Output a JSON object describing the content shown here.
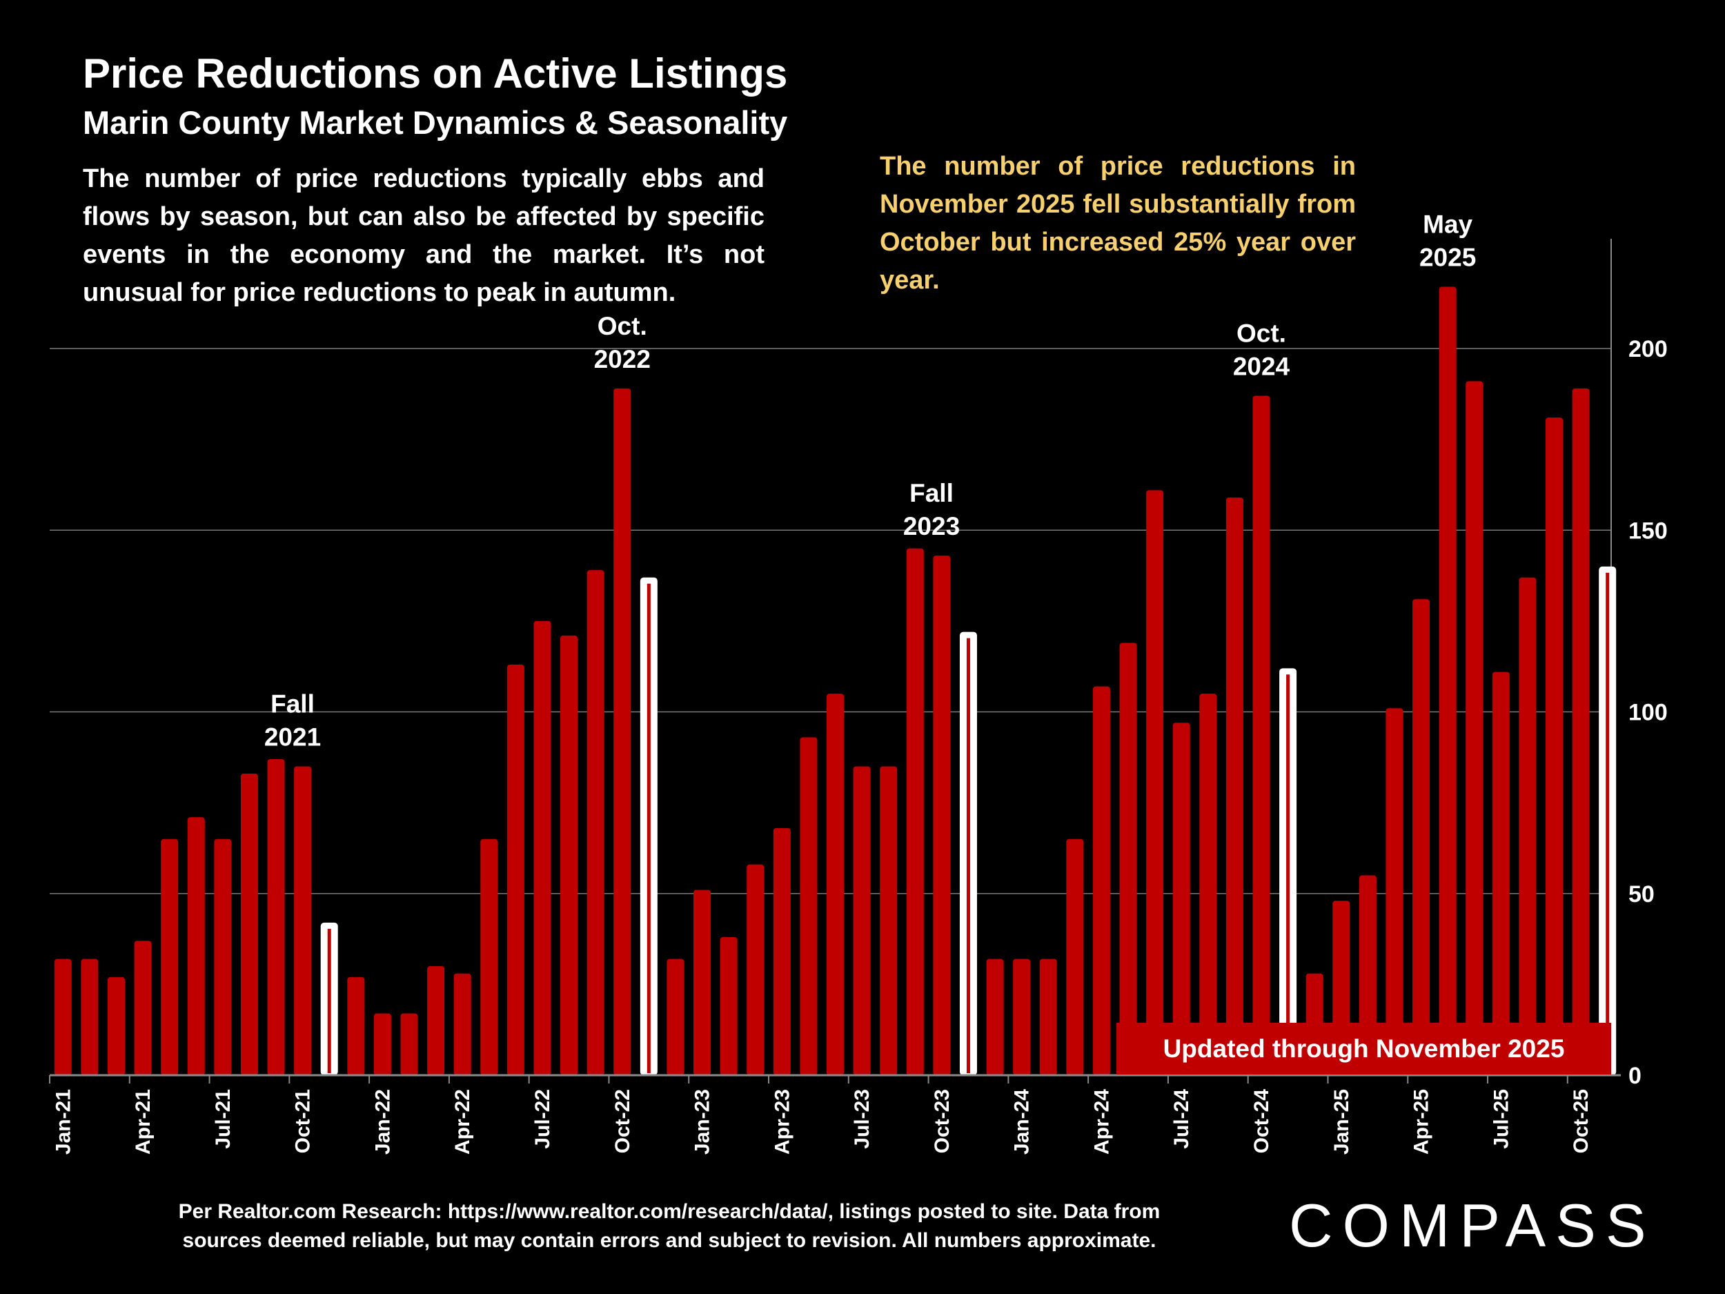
{
  "header": {
    "title": "Price Reductions on Active Listings",
    "subtitle": "Marin County Market Dynamics & Seasonality",
    "description": "The number of price reductions typically ebbs and flows by season, but can also be affected by specific events in the economy and the market. It’s not unusual for price reductions to peak in autumn.",
    "callout": "The number of price reductions in November 2025 fell substantially from October but increased 25% year over year."
  },
  "badge": "Updated through November 2025",
  "footer": {
    "line1": "Per Realtor.com Research:  https://www.realtor.com/research/data/, listings posted to site. Data from",
    "line2": "sources deemed reliable, but may contain errors and subject to revision. All numbers approximate."
  },
  "logo": "COMPASS",
  "colors": {
    "bar": "#c00000",
    "highlight": "#ffffff",
    "callout": "#f6cf6e",
    "background": "#000000"
  },
  "chart_data": {
    "type": "bar",
    "title": "",
    "xlabel": "",
    "ylabel": "",
    "ylim": [
      0,
      220
    ],
    "yticks": [
      0,
      50,
      100,
      150,
      200
    ],
    "y_axis_side": "right",
    "grid": true,
    "categories": [
      "Jan-21",
      "Feb-21",
      "Mar-21",
      "Apr-21",
      "May-21",
      "Jun-21",
      "Jul-21",
      "Aug-21",
      "Sep-21",
      "Oct-21",
      "Nov-21",
      "Dec-21",
      "Jan-22",
      "Feb-22",
      "Mar-22",
      "Apr-22",
      "May-22",
      "Jun-22",
      "Jul-22",
      "Aug-22",
      "Sep-22",
      "Oct-22",
      "Nov-22",
      "Dec-22",
      "Jan-23",
      "Feb-23",
      "Mar-23",
      "Apr-23",
      "May-23",
      "Jun-23",
      "Jul-23",
      "Aug-23",
      "Sep-23",
      "Oct-23",
      "Nov-23",
      "Dec-23",
      "Jan-24",
      "Feb-24",
      "Mar-24",
      "Apr-24",
      "May-24",
      "Jun-24",
      "Jul-24",
      "Aug-24",
      "Sep-24",
      "Oct-24",
      "Nov-24",
      "Dec-24",
      "Jan-25",
      "Feb-25",
      "Mar-25",
      "Apr-25",
      "May-25",
      "Jun-25",
      "Jul-25",
      "Aug-25",
      "Sep-25",
      "Oct-25",
      "Nov-25"
    ],
    "values": [
      32,
      32,
      27,
      37,
      65,
      71,
      65,
      83,
      87,
      85,
      42,
      27,
      17,
      17,
      30,
      28,
      65,
      113,
      125,
      121,
      139,
      189,
      137,
      32,
      51,
      38,
      58,
      68,
      93,
      105,
      85,
      85,
      145,
      143,
      122,
      32,
      32,
      32,
      65,
      107,
      119,
      161,
      97,
      105,
      159,
      187,
      112,
      28,
      48,
      55,
      101,
      131,
      217,
      191,
      111,
      137,
      181,
      189,
      140
    ],
    "highlighted": [
      "Nov-21",
      "Nov-22",
      "Nov-23",
      "Nov-24",
      "Nov-25"
    ],
    "xtick_labels": [
      "Jan-21",
      "Apr-21",
      "Jul-21",
      "Oct-21",
      "Jan-22",
      "Apr-22",
      "Jul-22",
      "Oct-22",
      "Jan-23",
      "Apr-23",
      "Jul-23",
      "Oct-23",
      "Jan-24",
      "Apr-24",
      "Jul-24",
      "Oct-24",
      "Jan-25",
      "Apr-25",
      "Jul-25",
      "Oct-25"
    ],
    "annotations": [
      {
        "month": "Oct-21",
        "line1": "Fall",
        "line2": "2021"
      },
      {
        "month": "Oct-22",
        "line1": "Oct.",
        "line2": "2022"
      },
      {
        "month": "Oct-23",
        "line1": "Fall",
        "line2": "2023"
      },
      {
        "month": "Oct-24",
        "line1": "Oct.",
        "line2": "2024"
      },
      {
        "month": "May-25",
        "line1": "May",
        "line2": "2025"
      }
    ]
  }
}
